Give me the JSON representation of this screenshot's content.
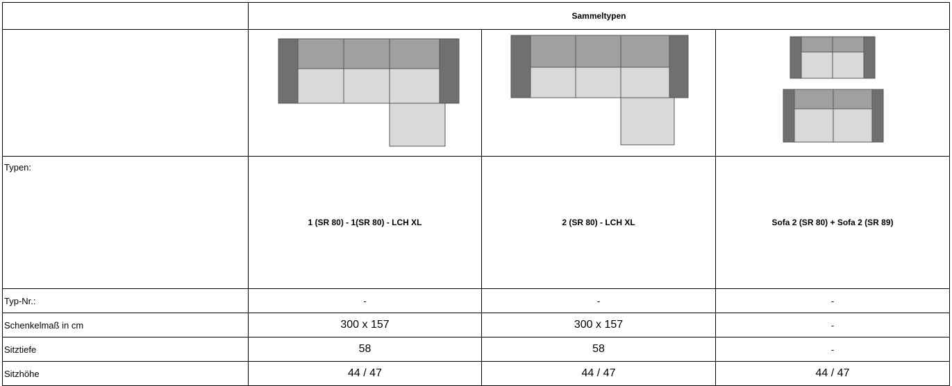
{
  "header": {
    "title": "Sammeltypen"
  },
  "table": {
    "rows": [
      [
        "Typen:",
        "1 (SR 80) - 1(SR 80) - LCH XL",
        "2 (SR 80) - LCH XL",
        "Sofa 2 (SR 80) + Sofa 2 (SR 89)"
      ],
      [
        "Typ-Nr.:",
        "-",
        "-",
        "-"
      ],
      [
        "Schenkelmaß in cm",
        "300 x 157",
        "300 x 157",
        "-"
      ],
      [
        "Sitztiefe",
        "58",
        "58",
        "-"
      ],
      [
        "Sitzhöhe",
        "44 / 47",
        "44 / 47",
        "44 / 47"
      ]
    ]
  }
}
